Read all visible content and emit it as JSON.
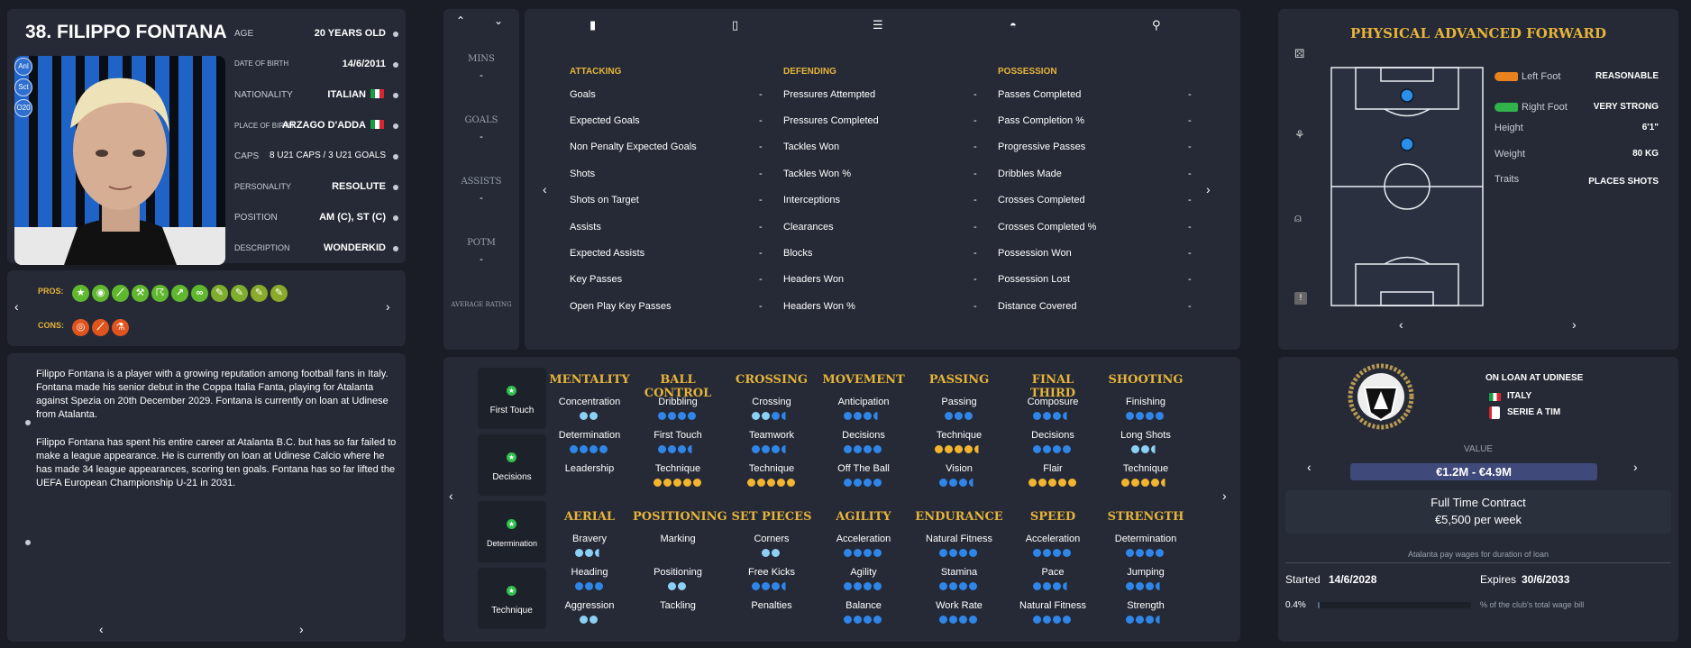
{
  "profile": {
    "title": "38. FILIPPO FONTANA",
    "badges": [
      "Anl",
      "Sct",
      "O20"
    ],
    "fields": [
      {
        "label": "AGE",
        "value": "20 YEARS OLD"
      },
      {
        "label": "DATE OF BIRTH",
        "value": "14/6/2011"
      },
      {
        "label": "NATIONALITY",
        "value": "ITALIAN"
      },
      {
        "label": "PLACE OF BIRTH",
        "value": "ARZAGO D'ADDA"
      },
      {
        "label": "CAPS",
        "value": "8 U21 CAPS / 3 U21 GOALS"
      },
      {
        "label": "PERSONALITY",
        "value": "RESOLUTE"
      },
      {
        "label": "POSITION",
        "value": "AM (C), ST (C)"
      },
      {
        "label": "DESCRIPTION",
        "value": "WONDERKID"
      }
    ]
  },
  "pros_cons": {
    "pros_label": "PROS:",
    "cons_label": "CONS:",
    "pros_icons": [
      "star-icon",
      "brain-icon",
      "boot-icon",
      "wrench-icon",
      "runner-icon",
      "trend-icon",
      "handshake-icon",
      "note-icon",
      "note-icon",
      "note-icon",
      "note-icon"
    ],
    "cons_icons": [
      "target-icon",
      "boot-icon",
      "flask-icon"
    ]
  },
  "bio": {
    "p1": "Filippo Fontana is a player with a growing reputation among football fans in Italy. Fontana made his senior debut in the Coppa Italia Fanta, playing for Atalanta against Spezia on 20th December 2029. Fontana is currently on loan at Udinese from Atalanta.",
    "p2": "Filippo Fontana has spent his entire career at Atalanta B.C. but has so far failed to make a league appearance. He is currently on loan at Udinese Calcio where he has made 34 league appearances, scoring ten goals. Fontana has so far lifted the UEFA European Championship U-21 in 2031."
  },
  "summary": {
    "items": [
      {
        "label": "MINS",
        "value": "-"
      },
      {
        "label": "GOALS",
        "value": "-"
      },
      {
        "label": "ASSISTS",
        "value": "-"
      },
      {
        "label": "POTM",
        "value": "-"
      },
      {
        "label": "AVERAGE RATING",
        "value": ""
      }
    ]
  },
  "stats": {
    "columns": [
      {
        "heading": "ATTACKING",
        "rows": [
          "Goals",
          "Expected Goals",
          "Non Penalty Expected Goals",
          "Shots",
          "Shots on Target",
          "Assists",
          "Expected Assists",
          "Key Passes",
          "Open Play Key Passes"
        ]
      },
      {
        "heading": "DEFENDING",
        "rows": [
          "Pressures Attempted",
          "Pressures Completed",
          "Tackles Won",
          "Tackles Won %",
          "Interceptions",
          "Clearances",
          "Blocks",
          "Headers Won",
          "Headers Won %"
        ]
      },
      {
        "heading": "POSSESSION",
        "rows": [
          "Passes Completed",
          "Pass Completion %",
          "Progressive Passes",
          "Dribbles Made",
          "Crosses Completed",
          "Crosses Completed %",
          "Possession Won",
          "Possession Lost",
          "Distance Covered"
        ]
      }
    ],
    "dash": "-"
  },
  "attributes": {
    "side": [
      "First Touch",
      "Decisions",
      "Determination",
      "Technique"
    ],
    "groups_top": [
      {
        "heading": "MENTALITY",
        "attrs": [
          {
            "n": "Concentration",
            "d": "LL"
          },
          {
            "n": "Determination",
            "d": "BBBB"
          },
          {
            "n": "Leadership",
            "d": ""
          }
        ]
      },
      {
        "heading": "BALL CONTROL",
        "attrs": [
          {
            "n": "Dribbling",
            "d": "BBBB"
          },
          {
            "n": "First Touch",
            "d": "BBBh"
          },
          {
            "n": "Technique",
            "d": "GGGGG"
          }
        ]
      },
      {
        "heading": "CROSSING",
        "attrs": [
          {
            "n": "Crossing",
            "d": "LLBh"
          },
          {
            "n": "Teamwork",
            "d": "BBBh"
          },
          {
            "n": "Technique",
            "d": "GGGGG"
          }
        ]
      },
      {
        "heading": "MOVEMENT",
        "attrs": [
          {
            "n": "Anticipation",
            "d": "BBBh"
          },
          {
            "n": "Decisions",
            "d": "BBBB"
          },
          {
            "n": "Off The Ball",
            "d": "BBBB"
          }
        ]
      },
      {
        "heading": "PASSING",
        "attrs": [
          {
            "n": "Passing",
            "d": "BBB"
          },
          {
            "n": "Technique",
            "d": "GGGGg"
          },
          {
            "n": "Vision",
            "d": "BBBh"
          }
        ]
      },
      {
        "heading": "FINAL THIRD",
        "attrs": [
          {
            "n": "Composure",
            "d": "BBBh"
          },
          {
            "n": "Decisions",
            "d": "BBBB"
          },
          {
            "n": "Flair",
            "d": "GGGGG"
          }
        ]
      },
      {
        "heading": "SHOOTING",
        "attrs": [
          {
            "n": "Finishing",
            "d": "BBBB"
          },
          {
            "n": "Long Shots",
            "d": "LLl"
          },
          {
            "n": "Technique",
            "d": "GGGGg"
          }
        ]
      }
    ],
    "groups_bottom": [
      {
        "heading": "AERIAL",
        "attrs": [
          {
            "n": "Bravery",
            "d": "LLl"
          },
          {
            "n": "Heading",
            "d": "BBB"
          },
          {
            "n": "Aggression",
            "d": "LL"
          }
        ]
      },
      {
        "heading": "POSITIONING",
        "attrs": [
          {
            "n": "Marking",
            "d": ""
          },
          {
            "n": "Positioning",
            "d": "LL"
          },
          {
            "n": "Tackling",
            "d": ""
          }
        ]
      },
      {
        "heading": "SET PIECES",
        "attrs": [
          {
            "n": "Corners",
            "d": "LL"
          },
          {
            "n": "Free Kicks",
            "d": "BBBh"
          },
          {
            "n": "Penalties",
            "d": ""
          }
        ]
      },
      {
        "heading": "AGILITY",
        "attrs": [
          {
            "n": "Acceleration",
            "d": "BBBB"
          },
          {
            "n": "Agility",
            "d": "BBBB"
          },
          {
            "n": "Balance",
            "d": "BBBB"
          }
        ]
      },
      {
        "heading": "ENDURANCE",
        "attrs": [
          {
            "n": "Natural Fitness",
            "d": "BBBB"
          },
          {
            "n": "Stamina",
            "d": "BBBB"
          },
          {
            "n": "Work Rate",
            "d": "BBBB"
          }
        ]
      },
      {
        "heading": "SPEED",
        "attrs": [
          {
            "n": "Acceleration",
            "d": "BBBB"
          },
          {
            "n": "Pace",
            "d": "BBBh"
          },
          {
            "n": "Natural Fitness",
            "d": "BBBB"
          }
        ]
      },
      {
        "heading": "STRENGTH",
        "attrs": [
          {
            "n": "Determination",
            "d": "BBBB"
          },
          {
            "n": "Jumping",
            "d": "BBBh"
          },
          {
            "n": "Strength",
            "d": "BBBh"
          }
        ]
      }
    ]
  },
  "role": {
    "title": "PHYSICAL ADVANCED FORWARD",
    "left_foot_label": "Left Foot",
    "left_foot_value": "REASONABLE",
    "right_foot_label": "Right Foot",
    "right_foot_value": "VERY STRONG",
    "height_label": "Height",
    "height_value": "6'1\"",
    "weight_label": "Weight",
    "weight_value": "80 KG",
    "traits_label": "Traits",
    "traits_value": "PLACES SHOTS"
  },
  "contract": {
    "loan": "ON LOAN AT UDINESE",
    "country": "ITALY",
    "league": "SERIE A TIM",
    "value_label": "VALUE",
    "value": "€1.2M - €4.9M",
    "contract_type": "Full Time Contract",
    "wage": "€5,500 per week",
    "wage_note": "Atalanta pay wages for duration of loan",
    "started_label": "Started",
    "started": "14/6/2028",
    "expires_label": "Expires",
    "expires": "30/6/2033",
    "wage_pct": "0.4%",
    "wage_pct_label": "% of the club's total wage bill",
    "wage_fraction": 0.004
  },
  "colors": {
    "accent": "#e6b43a",
    "dot_blue": "#2f86e8",
    "dot_light": "#8cd0f5",
    "dot_gold": "#f3b52f",
    "panel": "#252a36"
  }
}
